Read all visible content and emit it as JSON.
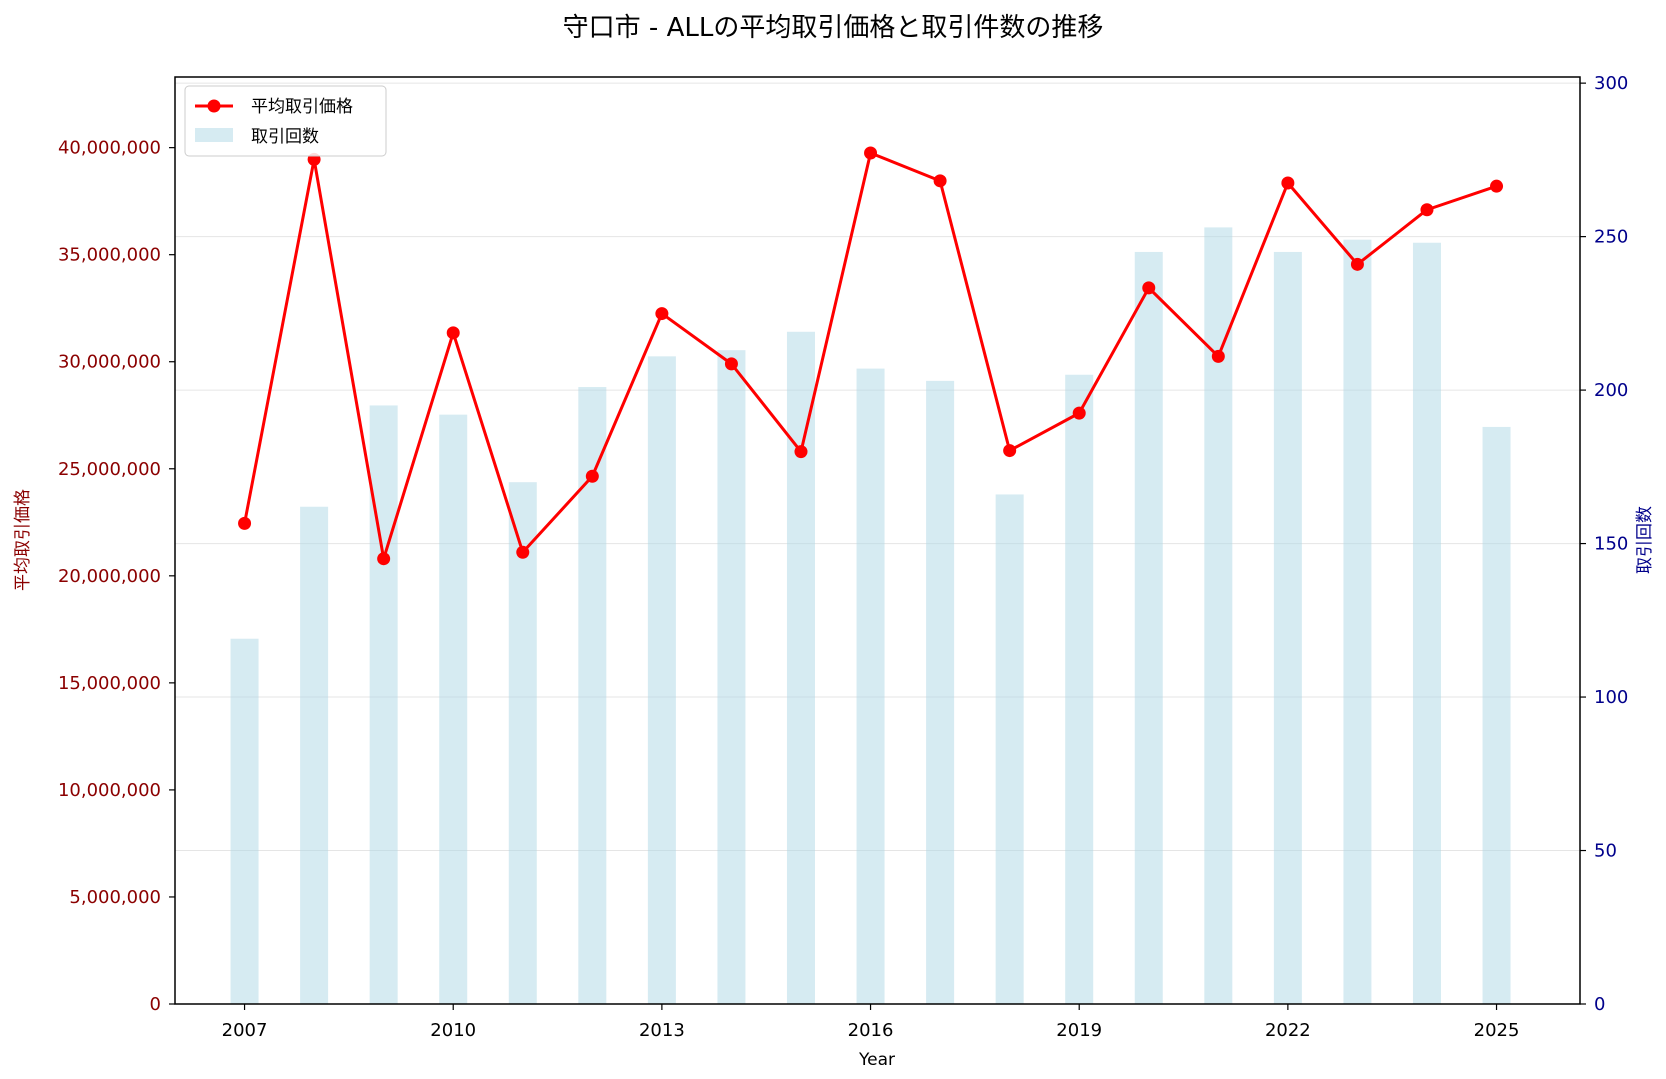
{
  "chart_data": {
    "type": "bar+line",
    "title": "守口市 - ALLの平均取引価格と取引件数の推移",
    "xlabel": "Year",
    "ylabel_left": "平均取引価格",
    "ylabel_right": "取引回数",
    "years": [
      2007,
      2008,
      2009,
      2010,
      2011,
      2012,
      2013,
      2014,
      2015,
      2016,
      2017,
      2018,
      2019,
      2020,
      2021,
      2022,
      2023,
      2024,
      2025
    ],
    "x_ticks": [
      "2007",
      "2010",
      "2013",
      "2016",
      "2019",
      "2022",
      "2025"
    ],
    "xlim": [
      2006,
      2026.2
    ],
    "series": [
      {
        "name": "平均取引価格",
        "type": "line",
        "axis": "left",
        "color": "#ff0000",
        "values": [
          22450000,
          39450000,
          20800000,
          31350000,
          21100000,
          24650000,
          32250000,
          29900000,
          25800000,
          39750000,
          38450000,
          25850000,
          27600000,
          33450000,
          30250000,
          38350000,
          34550000,
          37100000,
          38200000
        ]
      },
      {
        "name": "取引回数",
        "type": "bar",
        "axis": "right",
        "color": "#add8e6",
        "values": [
          119,
          162,
          195,
          192,
          170,
          201,
          211,
          213,
          219,
          207,
          203,
          166,
          205,
          245,
          253,
          245,
          249,
          248,
          188
        ]
      }
    ],
    "y_left": {
      "ylim": [
        0,
        43300000
      ],
      "ticks": [
        0,
        5000000,
        10000000,
        15000000,
        20000000,
        25000000,
        30000000,
        35000000,
        40000000
      ],
      "tick_labels": [
        "0",
        "5,000,000",
        "10,000,000",
        "15,000,000",
        "20,000,000",
        "25,000,000",
        "30,000,000",
        "35,000,000",
        "40,000,000"
      ],
      "color": "#8b0000"
    },
    "y_right": {
      "ylim": [
        0,
        302
      ],
      "ticks": [
        0,
        50,
        100,
        150,
        200,
        250,
        300
      ],
      "tick_labels": [
        "0",
        "50",
        "100",
        "150",
        "200",
        "250",
        "300"
      ],
      "color": "#00008b"
    },
    "grid": true,
    "legend_position": "top-left"
  }
}
